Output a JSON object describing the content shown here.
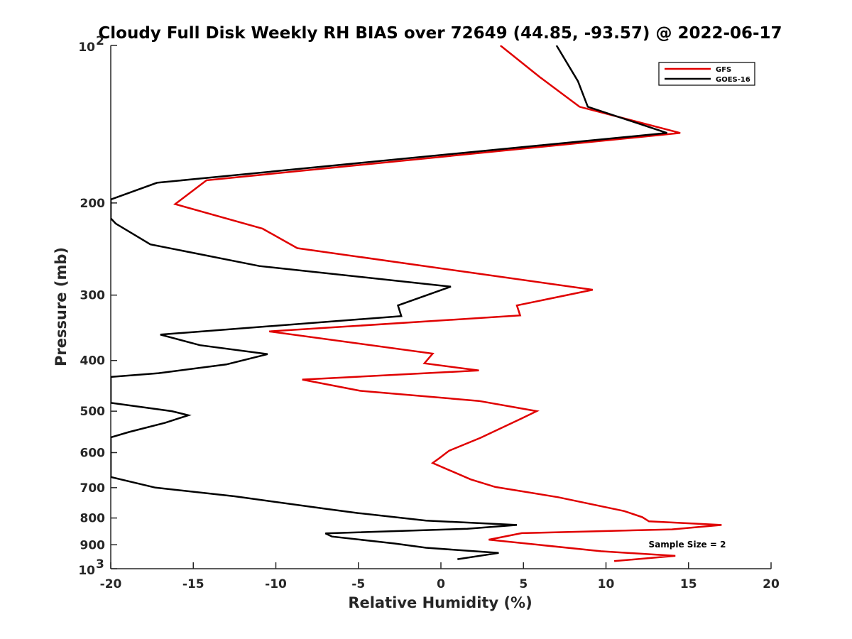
{
  "chart_data": {
    "type": "line",
    "title": "Cloudy Full Disk Weekly RH BIAS over 72649 (44.85, -93.57) @ 2022-06-17",
    "xlabel": "Relative Humidity (%)",
    "ylabel": "Pressure (mb)",
    "xlim": [
      -20,
      20
    ],
    "ylim": [
      100,
      1000
    ],
    "yscale": "log",
    "y_reversed": true,
    "grid": false,
    "legend_position": "top-right",
    "x_ticks": [
      -20,
      -15,
      -10,
      -5,
      0,
      5,
      10,
      15,
      20
    ],
    "x_tick_labels": [
      "-20",
      "-15",
      "-10",
      "-5",
      "0",
      "5",
      "10",
      "15",
      "20"
    ],
    "y_ticks": [
      {
        "value": 100,
        "base": "10",
        "exp": "2"
      },
      {
        "value": 200,
        "label": "200"
      },
      {
        "value": 300,
        "label": "300"
      },
      {
        "value": 400,
        "label": "400"
      },
      {
        "value": 500,
        "label": "500"
      },
      {
        "value": 600,
        "label": "600"
      },
      {
        "value": 700,
        "label": "700"
      },
      {
        "value": 800,
        "label": "800"
      },
      {
        "value": 900,
        "label": "900"
      },
      {
        "value": 1000,
        "base": "10",
        "exp": "3"
      }
    ],
    "annotation": "Sample Size = 2",
    "series": [
      {
        "name": "GFS",
        "color": "#e00000",
        "points": [
          [
            3.6,
            100
          ],
          [
            6.0,
            115
          ],
          [
            8.4,
            131
          ],
          [
            14.5,
            147
          ],
          [
            -14.2,
            181
          ],
          [
            -16.1,
            201
          ],
          [
            -10.8,
            224
          ],
          [
            -8.7,
            244
          ],
          [
            9.2,
            293
          ],
          [
            4.6,
            314
          ],
          [
            4.8,
            328
          ],
          [
            -10.4,
            352
          ],
          [
            -0.5,
            388
          ],
          [
            -1.0,
            405
          ],
          [
            2.3,
            418
          ],
          [
            -8.4,
            435
          ],
          [
            -4.9,
            457
          ],
          [
            2.3,
            478
          ],
          [
            5.8,
            500
          ],
          [
            4.9,
            516
          ],
          [
            2.4,
            562
          ],
          [
            0.5,
            595
          ],
          [
            -0.1,
            615
          ],
          [
            -0.5,
            628
          ],
          [
            1.8,
            675
          ],
          [
            3.3,
            698
          ],
          [
            7.1,
            730
          ],
          [
            11.1,
            776
          ],
          [
            12.2,
            797
          ],
          [
            12.6,
            812
          ],
          [
            17.0,
            825
          ],
          [
            14.0,
            841
          ],
          [
            4.9,
            855
          ],
          [
            2.9,
            880
          ],
          [
            9.7,
            926
          ],
          [
            14.2,
            945
          ],
          [
            10.5,
            967
          ]
        ]
      },
      {
        "name": "GOES-16",
        "color": "#000000",
        "points": [
          [
            7.0,
            100
          ],
          [
            8.3,
            117
          ],
          [
            8.9,
            131
          ],
          [
            13.7,
            147
          ],
          [
            -17.2,
            183
          ],
          [
            -20.0,
            197
          ],
          [
            -20.0,
            214
          ],
          [
            -19.7,
            219
          ],
          [
            -17.6,
            240
          ],
          [
            -11.0,
            264
          ],
          [
            0.6,
            289
          ],
          [
            -2.6,
            314
          ],
          [
            -2.4,
            329
          ],
          [
            -17.0,
            357
          ],
          [
            -14.6,
            374
          ],
          [
            -10.5,
            389
          ],
          [
            -13.0,
            407
          ],
          [
            -17.1,
            423
          ],
          [
            -20.0,
            430
          ],
          [
            -20.0,
            482
          ],
          [
            -16.3,
            500
          ],
          [
            -15.3,
            509
          ],
          [
            -16.7,
            526
          ],
          [
            -18.9,
            548
          ],
          [
            -20.0,
            561
          ],
          [
            -20.0,
            668
          ],
          [
            -17.3,
            700
          ],
          [
            -12.5,
            727
          ],
          [
            -6.9,
            769
          ],
          [
            -5.0,
            783
          ],
          [
            -0.9,
            809
          ],
          [
            4.6,
            825
          ],
          [
            1.6,
            839
          ],
          [
            -7.0,
            856
          ],
          [
            -6.6,
            868
          ],
          [
            -2.8,
            895
          ],
          [
            -0.9,
            912
          ],
          [
            3.5,
            933
          ],
          [
            1.0,
            959
          ]
        ]
      }
    ]
  }
}
